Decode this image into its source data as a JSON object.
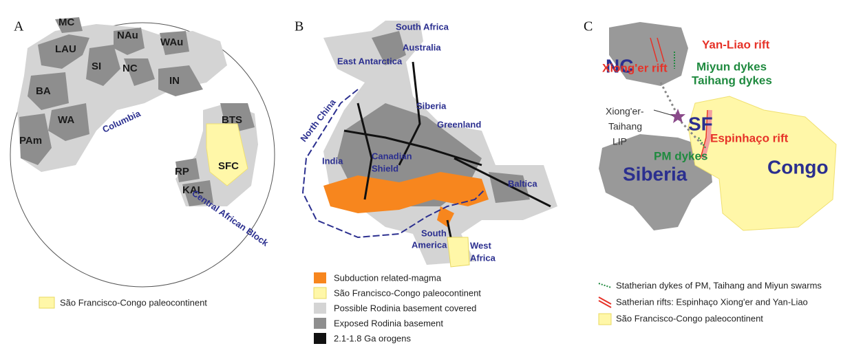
{
  "panels": [
    {
      "label": "A",
      "map_labels": [
        "MC",
        "LAU",
        "NAu",
        "WAu",
        "SI",
        "NC",
        "IN",
        "BA",
        "WA",
        "PAm",
        "Columbia",
        "BTS",
        "SFC",
        "RP",
        "KAL",
        "Central African Block"
      ],
      "legend": [
        "São Francisco-Congo paleocontinent"
      ]
    },
    {
      "label": "B",
      "map_labels": [
        "South Africa",
        "Australia",
        "East Antarctica",
        "Siberia",
        "North China",
        "Greenland",
        "India",
        [
          "Canadian",
          "Shield"
        ],
        "Baltica",
        [
          "South",
          "America"
        ],
        [
          "West",
          "Africa"
        ]
      ],
      "legend": [
        "Subduction related-magma",
        "São Francisco-Congo paleocontinent",
        "Possible Rodinia basement covered",
        "Exposed Rodinia basement",
        "2.1-1.8 Ga orogens"
      ]
    },
    {
      "label": "C",
      "map_labels": [
        "NC",
        "Yan-Liao rift",
        "Xiong'er rift",
        "Miyun dykes",
        "Taihang dykes",
        [
          "Xiong'er-",
          "Taihang",
          "LIP"
        ],
        "SF",
        "Espinhaço rift",
        "PM dykes",
        "Siberia",
        "Congo"
      ],
      "legend": [
        "Statherian dykes of PM, Taihang and Miyun swarms",
        "Satherian rifts: Espinhaço Xiong'er and Yan-Liao",
        "São Francisco-Congo paleocontinent"
      ]
    }
  ]
}
